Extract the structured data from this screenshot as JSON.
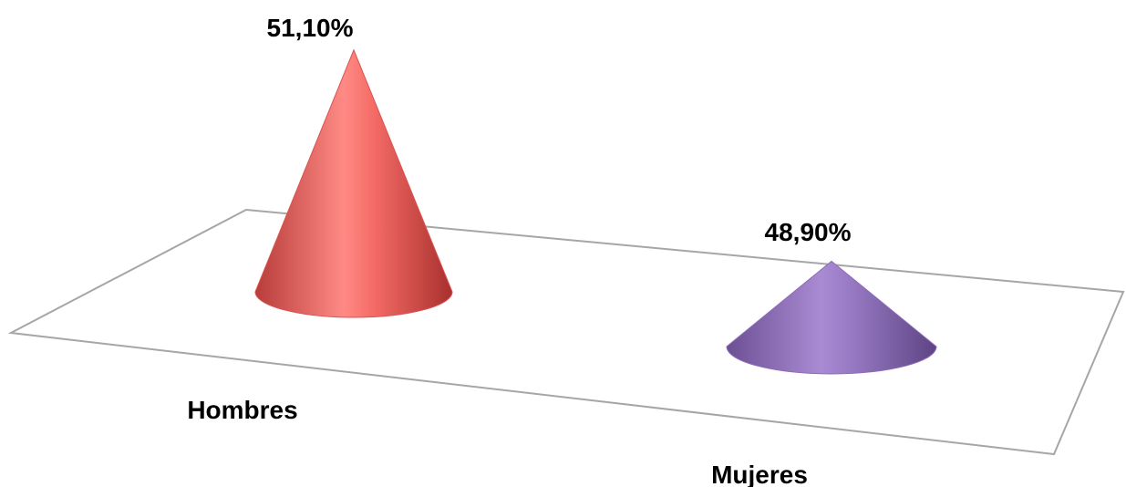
{
  "chart_data": {
    "type": "bar",
    "shape": "cone-3d",
    "categories": [
      "Hombres",
      "Mujeres"
    ],
    "values": [
      51.1,
      48.9
    ],
    "data_labels": [
      "51,10%",
      "48,90%"
    ],
    "colors": [
      "#d9534f",
      "#8e6bb8"
    ],
    "title": "",
    "xlabel": "",
    "ylabel": "",
    "legend": "none",
    "grid": false
  }
}
